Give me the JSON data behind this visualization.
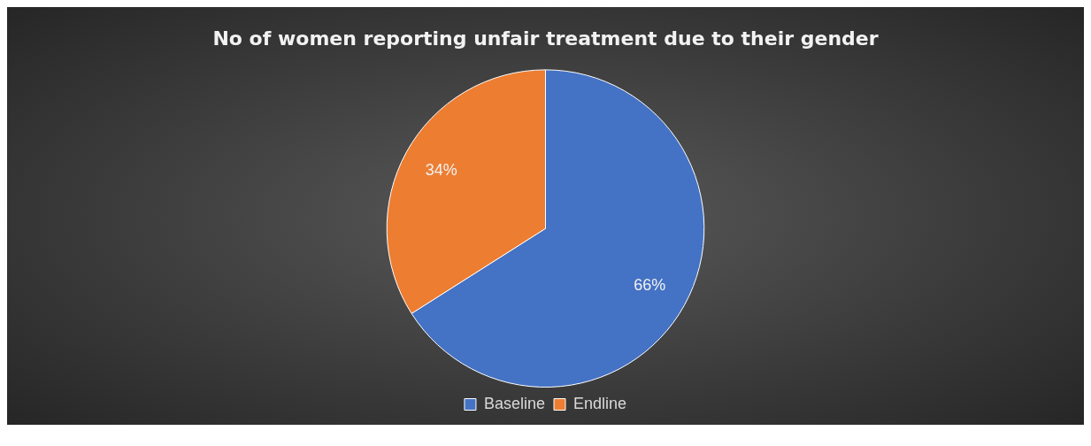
{
  "chart_data": {
    "type": "pie",
    "title": "No of women reporting unfair treatment due to their gender",
    "categories": [
      "Baseline",
      "Endline"
    ],
    "values": [
      66,
      34
    ],
    "colors": [
      "#4472c4",
      "#ed7d31"
    ],
    "value_labels": [
      "66%",
      "34%"
    ],
    "legend": "bottom"
  }
}
